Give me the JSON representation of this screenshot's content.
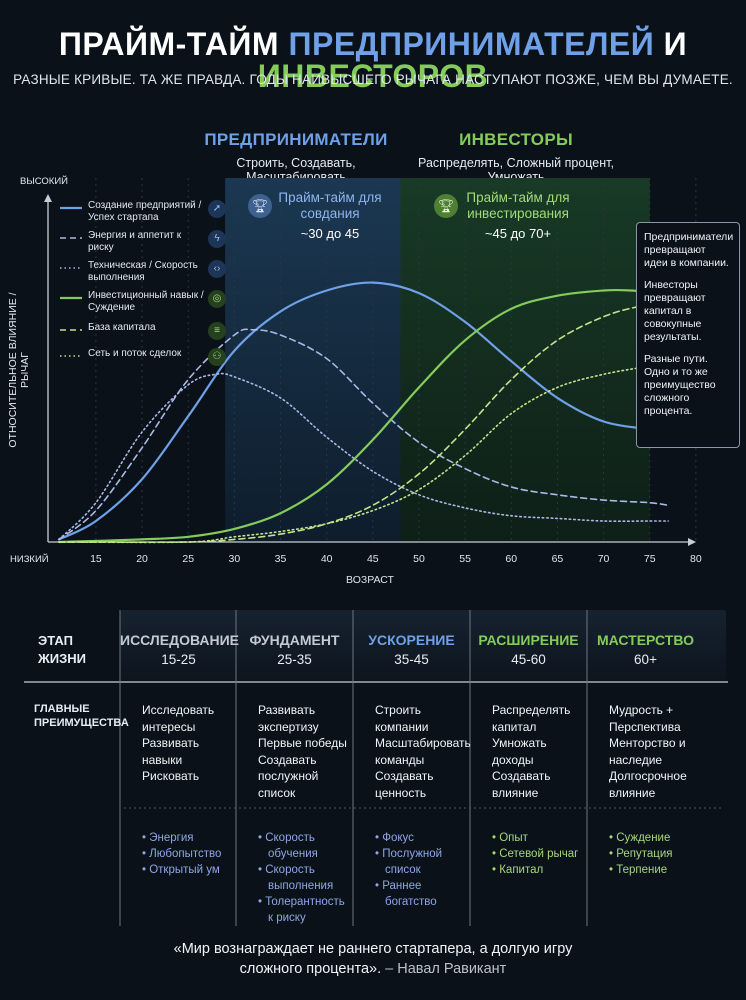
{
  "title": {
    "part1": "ПРАЙМ-ТАЙМ",
    "part2": "ПРЕДПРИНИМАТЕЛЕЙ",
    "part3": "И",
    "part4": "ИНВЕСТОРОВ"
  },
  "subtitle": "РАЗНЫЕ КРИВЫЕ. ТА ЖЕ ПРАВДА. ГОДЫ НАИВЫСШЕГО РЫЧАГА НАСТУПАЮТ ПОЗЖЕ, ЧЕМ ВЫ ДУМАЕТЕ.",
  "columns": {
    "entrepreneurs": {
      "heading": "ПРЕДПРИНИМАТЕЛИ",
      "sub": "Строить, Создавать, Масштабировать"
    },
    "investors": {
      "heading": "ИНВЕСТОРЫ",
      "sub": "Распределять, Сложный процент, Умножать"
    }
  },
  "colors": {
    "blue": "#6fa0e8",
    "blue_light": "#a9b9e6",
    "green": "#84cc5a",
    "green_light": "#c4e38c",
    "amber": "#f0c058",
    "band_blue": "#17304a",
    "band_green": "#163322"
  },
  "chart_data": {
    "type": "line",
    "xlabel": "ВОЗРАСТ",
    "ylabel": "ОТНОСИТЕЛЬНОЕ ВЛИЯНИЕ / РЫЧАГ",
    "y_high_label": "ВЫСОКИЙ",
    "y_low_label": "НИЗКИЙ",
    "xlim": [
      10,
      82
    ],
    "ylim": [
      0,
      100
    ],
    "x_ticks": [
      15,
      20,
      25,
      30,
      35,
      40,
      45,
      50,
      55,
      60,
      65,
      70,
      75,
      80
    ],
    "bands": [
      {
        "from": 29,
        "to": 48,
        "label": "Прайм-тайм для совдания",
        "age": "~30 до 45",
        "color_key": "blue"
      },
      {
        "from": 48,
        "to": 75,
        "label": "Прайм-тайм для инвестирования",
        "age": "~45 до 70+",
        "color_key": "green"
      }
    ],
    "series": [
      {
        "name": "Создание предприятий / Успех стартапа",
        "style": "solid",
        "color_key": "blue",
        "icon": "rocket-icon",
        "x": [
          11,
          15,
          20,
          25,
          30,
          35,
          40,
          45,
          50,
          55,
          60,
          65,
          70,
          75,
          77
        ],
        "y": [
          1,
          8,
          24,
          48,
          73,
          88,
          96,
          99,
          95,
          84,
          69,
          55,
          46,
          43,
          42
        ]
      },
      {
        "name": "Энергия и аппетит к риску",
        "style": "dashed",
        "color_key": "blue_light",
        "icon": "bolt-icon",
        "x": [
          11,
          15,
          20,
          25,
          30,
          32,
          35,
          40,
          45,
          50,
          55,
          60,
          65,
          70,
          75,
          77
        ],
        "y": [
          1,
          12,
          36,
          62,
          79,
          81,
          79,
          70,
          53,
          38,
          28,
          21,
          18,
          16,
          15,
          14
        ]
      },
      {
        "name": "Техническая / Скорость выполнения",
        "style": "dotted",
        "color_key": "blue_light",
        "icon": "code-icon",
        "x": [
          11,
          15,
          20,
          25,
          28,
          30,
          35,
          40,
          45,
          50,
          55,
          60,
          65,
          70,
          75,
          77
        ],
        "y": [
          1,
          15,
          42,
          60,
          64,
          63,
          55,
          40,
          27,
          18,
          13,
          10,
          9,
          8,
          8,
          8
        ]
      },
      {
        "name": "Инвестиционный навык / Суждение",
        "style": "solid",
        "color_key": "green",
        "icon": "target-icon",
        "x": [
          11,
          20,
          25,
          30,
          35,
          40,
          45,
          50,
          55,
          60,
          65,
          70,
          73,
          77
        ],
        "y": [
          0,
          1,
          2,
          5,
          11,
          22,
          39,
          59,
          77,
          89,
          94,
          96,
          96,
          95
        ]
      },
      {
        "name": "База капитала",
        "style": "dashed",
        "color_key": "green_light",
        "icon": "coins-icon",
        "x": [
          11,
          25,
          30,
          35,
          40,
          45,
          50,
          55,
          60,
          65,
          70,
          74,
          77
        ],
        "y": [
          0,
          0,
          1,
          3,
          7,
          14,
          26,
          43,
          62,
          77,
          86,
          90,
          91
        ]
      },
      {
        "name": "Сеть и поток сделок",
        "style": "dotted",
        "color_key": "green_light",
        "icon": "people-icon",
        "x": [
          11,
          25,
          30,
          35,
          40,
          45,
          50,
          55,
          60,
          65,
          70,
          75,
          77
        ],
        "y": [
          0,
          0,
          2,
          4,
          7,
          12,
          20,
          33,
          49,
          59,
          64,
          67,
          67
        ]
      }
    ]
  },
  "note": {
    "p1": "Предприниматели превращают идеи в компании.",
    "p2": "Инвесторы превращают капитал в совокупные результаты.",
    "p3": "Разные пути. Одно и то же преимущество сложного процента."
  },
  "table": {
    "stage_label": [
      "ЭТАП",
      "ЖИЗНИ"
    ],
    "advantages_label": [
      "ГЛАВНЫЕ",
      "ПРЕИМУЩЕСТВА"
    ],
    "stages": [
      {
        "name": "ИССЛЕДОВАНИЕ",
        "age": "15-25",
        "color_key": "grey",
        "advantages": [
          "Исследовать",
          "интересы",
          "Развивать",
          "навыки",
          "Рисковать"
        ],
        "traits": [
          "• Энергия",
          "• Любопытство",
          "• Открытый ум"
        ]
      },
      {
        "name": "ФУНДАМЕНТ",
        "age": "25-35",
        "color_key": "grey",
        "advantages": [
          "Развивать",
          "экспертизу",
          "Первые победы",
          "Создавать",
          "послужной",
          "список"
        ],
        "traits": [
          "• Скорость обучения",
          "• Скорость выполнения",
          "• Толерантность к риску"
        ]
      },
      {
        "name": "УСКОРЕНИЕ",
        "age": "35-45",
        "color_key": "blue",
        "advantages": [
          "Строить",
          "компании",
          "Масштабировать",
          "команды",
          "Создавать",
          "ценность"
        ],
        "traits": [
          "• Фокус",
          "• Послужной список",
          "• Раннее богатство"
        ]
      },
      {
        "name": "РАСШИРЕНИЕ",
        "age": "45-60",
        "color_key": "green",
        "advantages": [
          "Распределять",
          "капитал",
          "Умножать",
          "доходы",
          "Создавать",
          "влияние"
        ],
        "traits": [
          "• Опыт",
          "• Сетевой рычаг",
          "• Капитал"
        ]
      },
      {
        "name": "МАСТЕРСТВО",
        "age": "60+",
        "color_key": "green",
        "advantages": [
          "Мудрость +",
          "Перспектива",
          "Менторство и",
          "наследие",
          "Долгосрочное",
          "влияние"
        ],
        "traits": [
          "• Суждение",
          "• Репутация",
          "• Терпение"
        ]
      }
    ]
  },
  "quote": {
    "line1": "«Мир вознаграждает не раннего стартапера, а долгую игру",
    "line2": "сложного процента».",
    "author": "– Навал Равикант"
  }
}
